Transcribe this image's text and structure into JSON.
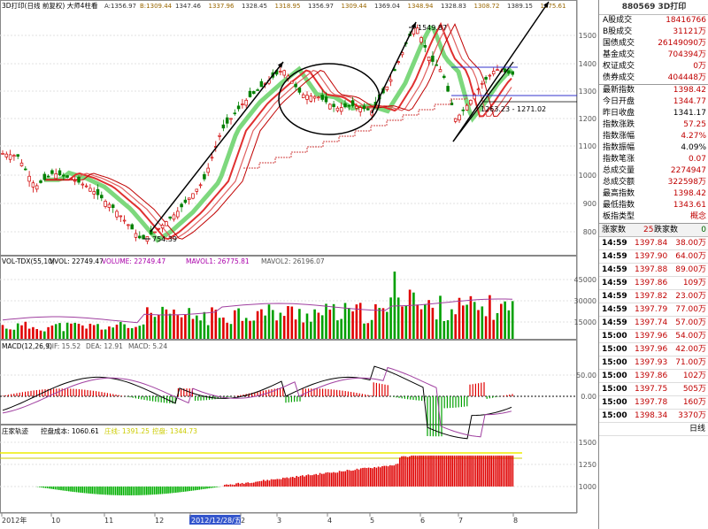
{
  "chart": {
    "title_prefix": "3D打印(日线 前复权) 大师4柱看",
    "top_stats": [
      "A:1356.97",
      "B:1309.44",
      "1347.46",
      "1337.96",
      "1328.45",
      "1318.95",
      "1356.97",
      "1309.44",
      "1369.04",
      "1348.94",
      "1328.83",
      "1308.72",
      "1389.15",
      "1375.61"
    ],
    "price_axis": [
      "1500",
      "1400",
      "1300",
      "1200",
      "1100",
      "1000",
      "900",
      "800"
    ],
    "annotations": {
      "high": "1549.87",
      "low": "754.39",
      "range": "1263.23 - 1271.02"
    },
    "vol_header": [
      "VOL-TDX(55,10)",
      "VVOL: 22749.47",
      "VOLUME: 22749.47",
      "MAVOL1: 26775.81",
      "MAVOL2: 26196.07"
    ],
    "vol_axis": [
      "45000",
      "30000",
      "15000"
    ],
    "macd_header": [
      "MACD(12,26,9)",
      "DIF: 15.52",
      "DEA: 12.91",
      "MACD: 5.24"
    ],
    "macd_axis": [
      "50.00",
      "0.00"
    ],
    "zj_header": [
      "庄家轨迹",
      "控盘成本: 1060.61",
      "庄线: 1391.25",
      "控盘: 1344.73"
    ],
    "zj_axis": [
      "1500",
      "1250",
      "1000"
    ],
    "x_axis": [
      "2012年",
      "10",
      "11",
      "12",
      "2012/12/28/五",
      "2",
      "3",
      "4",
      "5",
      "6",
      "7",
      "8"
    ],
    "date_tag": "2012/12/28/五"
  },
  "panel": {
    "title": "880569 3D打印",
    "volumes": [
      {
        "label": "A股成交",
        "value": "18416766"
      },
      {
        "label": "B股成交",
        "value": "31121万"
      },
      {
        "label": "国债成交",
        "value": "26149090万"
      },
      {
        "label": "基金成交",
        "value": "704394万"
      },
      {
        "label": "权证成交",
        "value": "0万"
      },
      {
        "label": "债券成交",
        "value": "404448万"
      }
    ],
    "index": [
      {
        "label": "最新指数",
        "value": "1398.42"
      },
      {
        "label": "今日开盘",
        "value": "1344.77"
      },
      {
        "label": "昨日收盘",
        "value": "1341.17"
      },
      {
        "label": "指数涨跌",
        "value": "57.25"
      },
      {
        "label": "指数涨幅",
        "value": "4.27%"
      },
      {
        "label": "指数振幅",
        "value": "4.09%"
      },
      {
        "label": "指数笔涨",
        "value": "0.07"
      },
      {
        "label": "总成交量",
        "value": "2274947"
      },
      {
        "label": "总成交额",
        "value": "322598万"
      },
      {
        "label": "最高指数",
        "value": "1398.42"
      },
      {
        "label": "最低指数",
        "value": "1343.61"
      },
      {
        "label": "板指类型",
        "value": "概念"
      }
    ],
    "zhang_label": "涨家数",
    "zhang_value": "25",
    "die_label": "跌家数",
    "die_value": "0",
    "ticks": [
      {
        "t": "14:59",
        "p": "1397.84",
        "v": "38.00万"
      },
      {
        "t": "14:59",
        "p": "1397.90",
        "v": "64.00万"
      },
      {
        "t": "14:59",
        "p": "1397.88",
        "v": "89.00万"
      },
      {
        "t": "14:59",
        "p": "1397.86",
        "v": "109万"
      },
      {
        "t": "14:59",
        "p": "1397.82",
        "v": "23.00万"
      },
      {
        "t": "14:59",
        "p": "1397.79",
        "v": "77.00万"
      },
      {
        "t": "14:59",
        "p": "1397.74",
        "v": "57.00万"
      },
      {
        "t": "15:00",
        "p": "1397.96",
        "v": "54.00万"
      },
      {
        "t": "15:00",
        "p": "1397.96",
        "v": "42.00万"
      },
      {
        "t": "15:00",
        "p": "1397.93",
        "v": "71.00万"
      },
      {
        "t": "15:00",
        "p": "1397.86",
        "v": "102万"
      },
      {
        "t": "15:00",
        "p": "1397.75",
        "v": "505万"
      },
      {
        "t": "15:00",
        "p": "1397.78",
        "v": "160万"
      },
      {
        "t": "15:00",
        "p": "1398.34",
        "v": "3370万"
      }
    ],
    "bottom_label": "日线"
  }
}
